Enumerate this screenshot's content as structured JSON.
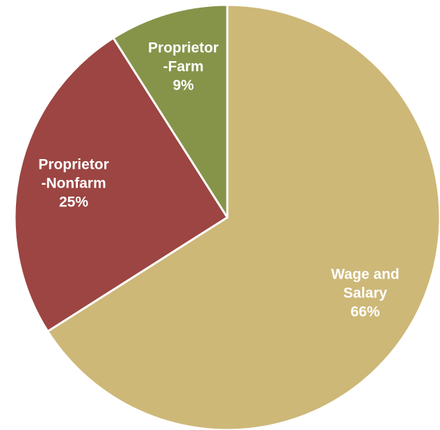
{
  "chart_data": {
    "type": "pie",
    "categories": [
      "Wage and\nSalary",
      "Proprietor\n-Nonfarm",
      "Proprietor\n-Farm"
    ],
    "values": [
      66,
      25,
      9
    ],
    "value_labels": [
      "66%",
      "25%",
      "9%"
    ],
    "colors": [
      "#cdb878",
      "#9c4542",
      "#86944a"
    ]
  }
}
